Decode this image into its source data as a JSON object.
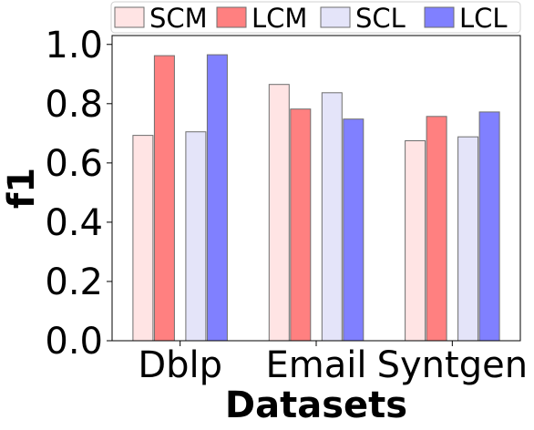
{
  "chart_data": {
    "type": "bar",
    "title": "",
    "xlabel": "Datasets",
    "ylabel": "f1",
    "categories": [
      "Dblp",
      "Email",
      "Syntgen"
    ],
    "series": [
      {
        "name": "SCM",
        "color": "#ffe4e4",
        "values": [
          0.693,
          0.865,
          0.675
        ]
      },
      {
        "name": "LCM",
        "color": "#ff8080",
        "values": [
          0.962,
          0.782,
          0.757
        ]
      },
      {
        "name": "SCL",
        "color": "#e4e4f9",
        "values": [
          0.705,
          0.837,
          0.688
        ]
      },
      {
        "name": "LCL",
        "color": "#8080ff",
        "values": [
          0.965,
          0.748,
          0.772
        ]
      }
    ],
    "ylim": [
      0.0,
      1.03
    ],
    "yticks": [
      "0.0",
      "0.2",
      "0.4",
      "0.6",
      "0.8",
      "1.0"
    ],
    "grid": false,
    "legend_position": "top"
  }
}
